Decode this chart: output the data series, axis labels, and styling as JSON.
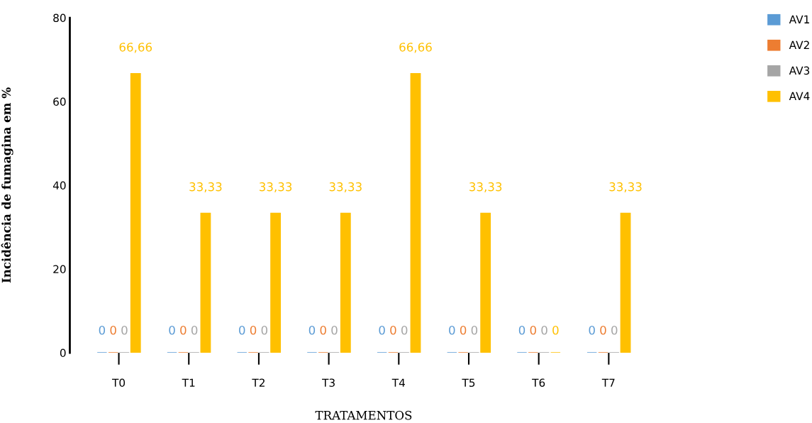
{
  "chart_data": {
    "type": "bar",
    "xlabel": "TRATAMENTOS",
    "ylabel": "Incidência de fumagina em %",
    "categories": [
      "T0",
      "T1",
      "T2",
      "T3",
      "T4",
      "T5",
      "T6",
      "T7"
    ],
    "series": [
      {
        "name": "AV1",
        "color": "#5b9bd5",
        "values": [
          0,
          0,
          0,
          0,
          0,
          0,
          0,
          0
        ],
        "value_labels": [
          "0",
          "0",
          "0",
          "0",
          "0",
          "0",
          "0",
          "0"
        ]
      },
      {
        "name": "AV2",
        "color": "#ed7d31",
        "values": [
          0,
          0,
          0,
          0,
          0,
          0,
          0,
          0
        ],
        "value_labels": [
          "0",
          "0",
          "0",
          "0",
          "0",
          "0",
          "0",
          "0"
        ]
      },
      {
        "name": "AV3",
        "color": "#a5a5a5",
        "values": [
          0,
          0,
          0,
          0,
          0,
          0,
          0,
          0
        ],
        "value_labels": [
          "0",
          "0",
          "0",
          "0",
          "0",
          "0",
          "0",
          "0"
        ]
      },
      {
        "name": "AV4",
        "color": "#ffc000",
        "values": [
          66.66,
          33.33,
          33.33,
          33.33,
          66.66,
          33.33,
          0,
          33.33
        ],
        "value_labels": [
          "66,66",
          "33,33",
          "33,33",
          "33,33",
          "66,66",
          "33,33",
          "0",
          "33,33"
        ]
      }
    ],
    "ylim": [
      0,
      80
    ],
    "yticks": [
      0,
      20,
      40,
      60,
      80
    ],
    "grid": false,
    "legend": "top right"
  }
}
